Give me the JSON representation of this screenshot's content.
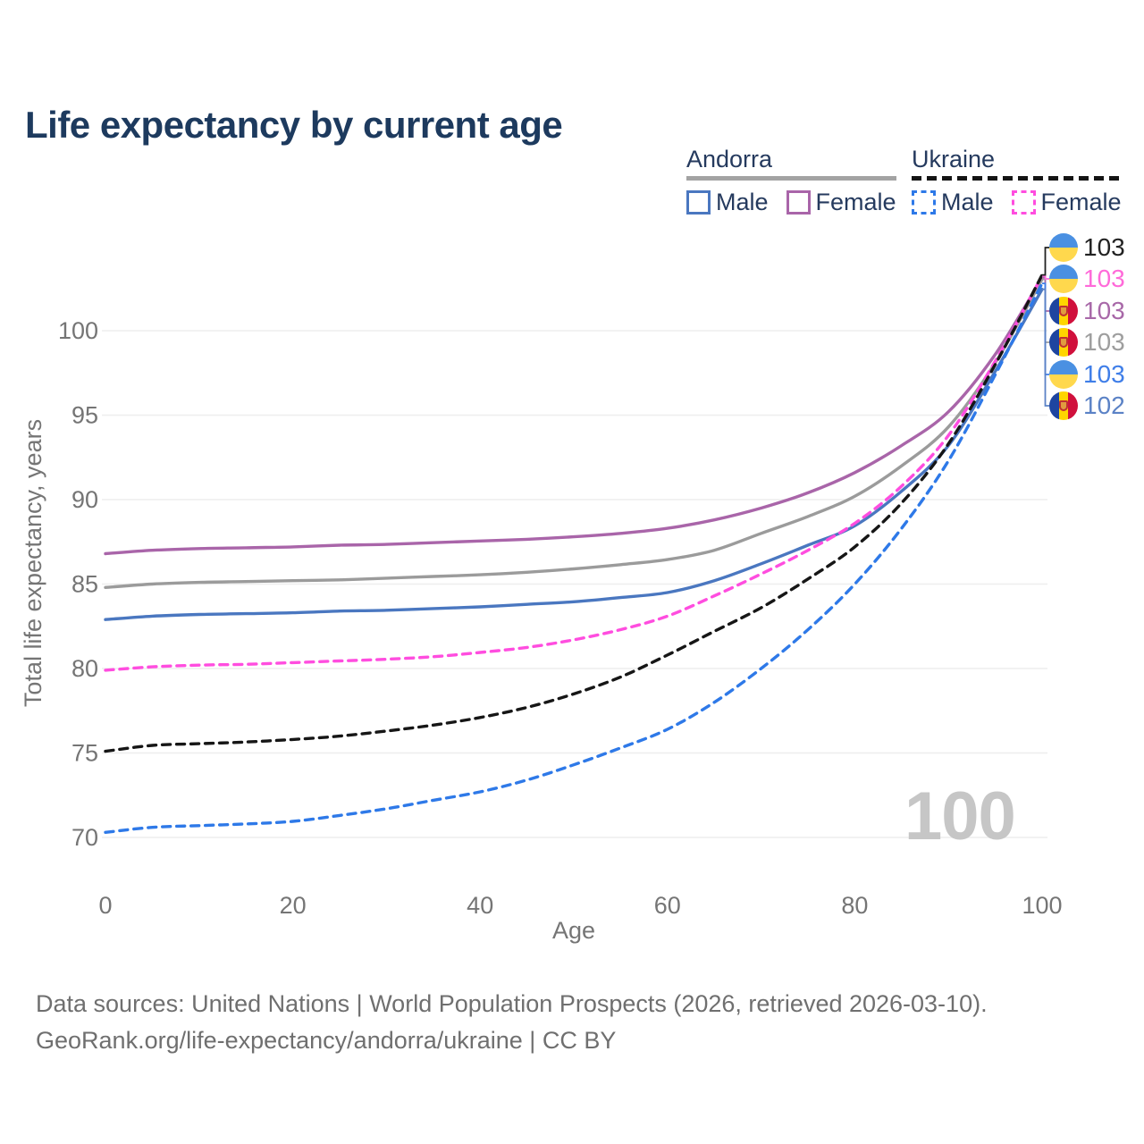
{
  "header": {
    "title": "Life expectancy by current age"
  },
  "legend": {
    "groups": [
      {
        "country": "Andorra",
        "line_style": "solid",
        "items": [
          {
            "label": "Male"
          },
          {
            "label": "Female"
          }
        ]
      },
      {
        "country": "Ukraine",
        "line_style": "dashed",
        "items": [
          {
            "label": "Male"
          },
          {
            "label": "Female"
          }
        ]
      }
    ]
  },
  "footer": {
    "line1": "Data sources: United Nations | World Population Prospects (2026, retrieved 2026-03-10).",
    "line2": "GeoRank.org/life-expectancy/andorra/ukraine | CC BY"
  },
  "palette": {
    "title_text": "#1d3a5e",
    "legend_text": "#253a5e",
    "axis_text": "#757575",
    "gridline": "#eeeeee",
    "watermark": "#c6c6c6",
    "footer_text": "#6f6f6f",
    "andorra_underline": "#a3a3a3",
    "ukraine_underline": "#141414"
  },
  "chart_data": {
    "type": "line",
    "title": "Life expectancy by current age",
    "xlabel": "Age",
    "ylabel": "Total life expectancy, years",
    "xlim": [
      0,
      100
    ],
    "ylim": [
      68.5,
      104.5
    ],
    "xticks": [
      0,
      20,
      40,
      60,
      80,
      100
    ],
    "yticks": [
      70,
      75,
      80,
      85,
      90,
      95,
      100
    ],
    "grid": "horizontal",
    "legend_position": "top-right",
    "watermark": "100",
    "x": [
      0,
      5,
      10,
      15,
      20,
      25,
      30,
      35,
      40,
      45,
      50,
      55,
      60,
      65,
      70,
      75,
      80,
      85,
      90,
      95,
      100
    ],
    "series": [
      {
        "name": "Andorra Female",
        "country": "Andorra",
        "sex": "Female",
        "color": "#a965a9",
        "dash": "solid",
        "values": [
          86.8,
          87.0,
          87.1,
          87.15,
          87.2,
          87.3,
          87.35,
          87.45,
          87.55,
          87.65,
          87.8,
          88.0,
          88.3,
          88.8,
          89.5,
          90.4,
          91.6,
          93.2,
          95.2,
          98.6,
          103.15
        ]
      },
      {
        "name": "Andorra Total",
        "country": "Andorra",
        "sex": "Both",
        "color": "#9b9b9b",
        "dash": "solid",
        "values": [
          84.8,
          85.0,
          85.1,
          85.15,
          85.2,
          85.25,
          85.35,
          85.45,
          85.55,
          85.7,
          85.9,
          86.15,
          86.45,
          87.0,
          88.0,
          89.0,
          90.2,
          92.0,
          94.3,
          98.1,
          103.05
        ]
      },
      {
        "name": "Andorra Male",
        "country": "Andorra",
        "sex": "Male",
        "color": "#4a77c0",
        "dash": "solid",
        "values": [
          82.9,
          83.1,
          83.2,
          83.25,
          83.3,
          83.4,
          83.45,
          83.55,
          83.65,
          83.8,
          83.95,
          84.2,
          84.5,
          85.2,
          86.2,
          87.3,
          88.45,
          90.5,
          93.2,
          97.6,
          102.45
        ]
      },
      {
        "name": "Ukraine Female",
        "country": "Ukraine",
        "sex": "Female",
        "color": "#ff4ddf",
        "dash": "dashed",
        "values": [
          79.9,
          80.1,
          80.2,
          80.25,
          80.35,
          80.45,
          80.55,
          80.7,
          80.95,
          81.25,
          81.7,
          82.3,
          83.1,
          84.3,
          85.6,
          87.0,
          88.6,
          90.8,
          93.8,
          98.2,
          103.25
        ]
      },
      {
        "name": "Ukraine Total",
        "country": "Ukraine",
        "sex": "Both",
        "color": "#161616",
        "dash": "dashed",
        "values": [
          75.1,
          75.45,
          75.55,
          75.65,
          75.8,
          76.0,
          76.3,
          76.65,
          77.1,
          77.7,
          78.5,
          79.5,
          80.8,
          82.2,
          83.6,
          85.3,
          87.2,
          89.8,
          93.3,
          98.0,
          103.3
        ]
      },
      {
        "name": "Ukraine Male",
        "country": "Ukraine",
        "sex": "Male",
        "color": "#2e79e8",
        "dash": "dashed",
        "values": [
          70.3,
          70.6,
          70.7,
          70.8,
          70.95,
          71.3,
          71.7,
          72.2,
          72.7,
          73.4,
          74.3,
          75.3,
          76.4,
          78.0,
          80.0,
          82.3,
          85.0,
          88.3,
          92.3,
          97.4,
          102.8
        ]
      }
    ],
    "end_labels": [
      {
        "value": "103",
        "flag": "ukraine",
        "color": "#222222",
        "series": 4
      },
      {
        "value": "103",
        "flag": "ukraine",
        "color": "#ff6ad9",
        "series": 3
      },
      {
        "value": "103",
        "flag": "andorra",
        "color": "#a868a8",
        "series": 0
      },
      {
        "value": "103",
        "flag": "andorra",
        "color": "#9e9e9e",
        "series": 1
      },
      {
        "value": "103",
        "flag": "ukraine",
        "color": "#3f7ee8",
        "series": 5
      },
      {
        "value": "102",
        "flag": "andorra",
        "color": "#5b82c6",
        "series": 2
      }
    ]
  }
}
